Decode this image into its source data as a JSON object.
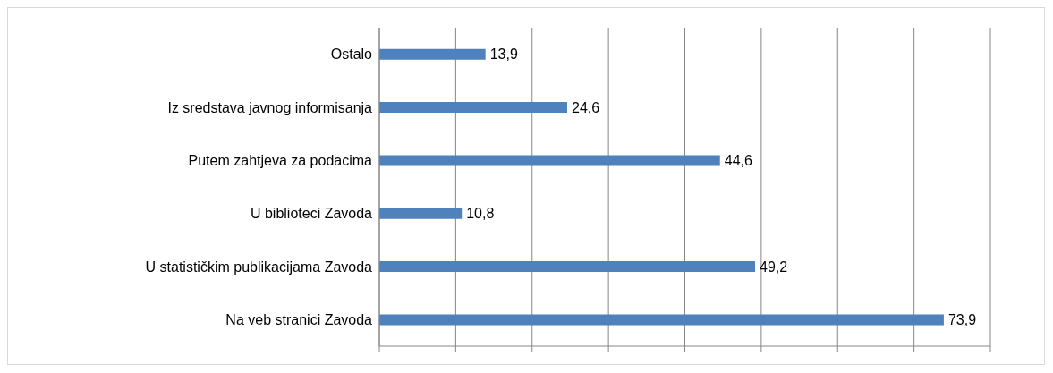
{
  "chart_data": {
    "type": "bar",
    "orientation": "horizontal",
    "categories": [
      "Ostalo",
      "Iz sredstava javnog informisanja",
      "Putem zahtjeva za podacima",
      "U biblioteci Zavoda",
      "U statističkim publikacijama  Zavoda",
      "Na veb stranici Zavoda"
    ],
    "values": [
      13.9,
      24.6,
      44.6,
      10.8,
      49.2,
      73.9
    ],
    "color": "#4f81bd",
    "value_labels": [
      "13,9",
      "24,6",
      "44,6",
      "10,8",
      "49,2",
      "73,9"
    ],
    "grid": "x",
    "tick_labels": "y"
  }
}
